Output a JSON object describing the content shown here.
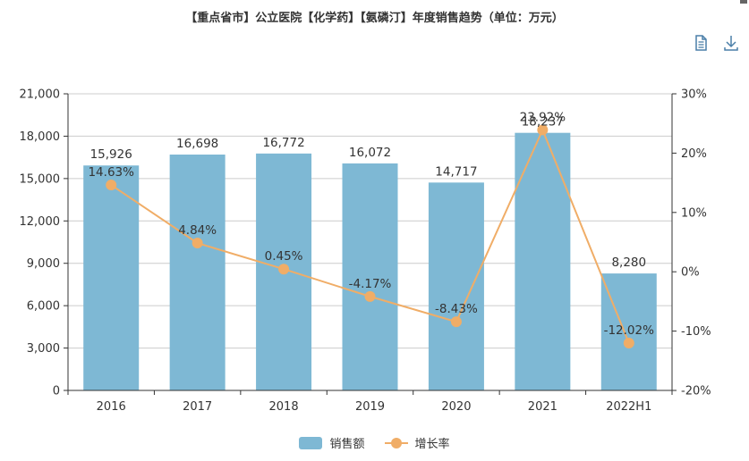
{
  "title": "【重点省市】公立医院【化学药】【氨磷汀】年度销售趋势（单位：万元）",
  "toolbar": {
    "icons": [
      "document-icon",
      "download-icon"
    ]
  },
  "colors": {
    "bar": "#7eb8d4",
    "line": "#f0ad67",
    "axis": "#333333",
    "grid": "#cccccc"
  },
  "legend": {
    "bar_label": "销售额",
    "line_label": "增长率"
  },
  "chart_data": {
    "type": "bar",
    "categories": [
      "2016",
      "2017",
      "2018",
      "2019",
      "2020",
      "2021",
      "2022H1"
    ],
    "series": [
      {
        "name": "销售额",
        "type": "bar",
        "axis": "left",
        "values": [
          15926,
          16698,
          16772,
          16072,
          14717,
          18237,
          8280
        ],
        "labels": [
          "15,926",
          "16,698",
          "16,772",
          "16,072",
          "14,717",
          "18,237",
          "8,280"
        ]
      },
      {
        "name": "增长率",
        "type": "line",
        "axis": "right",
        "values": [
          14.63,
          4.84,
          0.45,
          -4.17,
          -8.43,
          23.92,
          -12.02
        ],
        "labels": [
          "14.63%",
          "4.84%",
          "0.45%",
          "-4.17%",
          "-8.43%",
          "23.92%",
          "-12.02%"
        ]
      }
    ],
    "y_left": {
      "min": 0,
      "max": 21000,
      "ticks": [
        "0",
        "3,000",
        "6,000",
        "9,000",
        "12,000",
        "15,000",
        "18,000",
        "21,000"
      ]
    },
    "y_right": {
      "min": -20,
      "max": 30,
      "ticks": [
        "-20%",
        "-10%",
        "0%",
        "10%",
        "20%",
        "30%"
      ]
    },
    "grid": true,
    "legend_position": "bottom"
  }
}
